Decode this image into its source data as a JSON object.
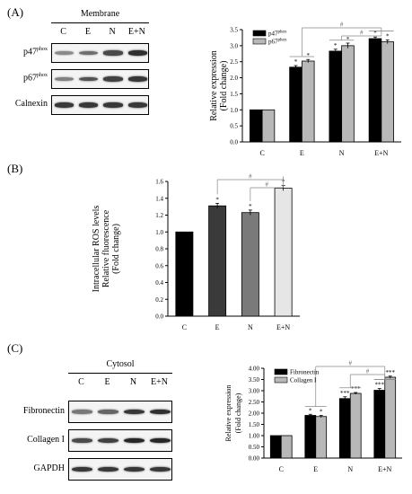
{
  "panels": {
    "a": "(A)",
    "b": "(B)",
    "c": "(C)"
  },
  "blot_a": {
    "header": "Membrane",
    "lanes": [
      "C",
      "E",
      "N",
      "E+N"
    ],
    "rows": [
      {
        "name": "p47",
        "sup": "phox",
        "intensity": [
          0.35,
          0.5,
          0.7,
          0.85
        ]
      },
      {
        "name": "p67",
        "sup": "phox",
        "intensity": [
          0.4,
          0.65,
          0.75,
          0.8
        ]
      },
      {
        "name": "Calnexin",
        "sup": "",
        "intensity": [
          0.8,
          0.8,
          0.8,
          0.8
        ]
      }
    ]
  },
  "blot_c": {
    "header": "Cytosol",
    "lanes": [
      "C",
      "E",
      "N",
      "E+N"
    ],
    "rows": [
      {
        "name": "Fibronectin",
        "sup": "",
        "intensity": [
          0.45,
          0.55,
          0.8,
          0.85
        ]
      },
      {
        "name": "Collagen I",
        "sup": "",
        "intensity": [
          0.7,
          0.75,
          0.9,
          0.9
        ]
      },
      {
        "name": "GAPDH",
        "sup": "",
        "intensity": [
          0.8,
          0.8,
          0.8,
          0.8
        ]
      }
    ]
  },
  "colors": {
    "black": "#000000",
    "grey": "#b8b8b8",
    "dark": "#3a3a3a",
    "mid": "#7a7a7a",
    "light": "#e6e6e6"
  },
  "chart_data": [
    {
      "id": "chart-a",
      "type": "bar",
      "categories": [
        "C",
        "E",
        "N",
        "E+N"
      ],
      "series": [
        {
          "name": "p47",
          "name_sup": "phox",
          "values": [
            1.0,
            2.33,
            2.83,
            3.22
          ],
          "errors": [
            0,
            0.05,
            0.06,
            0.05
          ],
          "sig": [
            "",
            "*",
            "*",
            "*"
          ]
        },
        {
          "name": "p67",
          "name_sup": "phox",
          "values": [
            1.0,
            2.52,
            3.0,
            3.12
          ],
          "errors": [
            0,
            0.05,
            0.08,
            0.06
          ],
          "sig": [
            "",
            "*",
            "*",
            "*"
          ]
        }
      ],
      "ylabel": [
        "Relative expression",
        "(Fold change)"
      ],
      "ylim": [
        0,
        3.5
      ],
      "yticks": [
        0.0,
        0.5,
        1.0,
        1.5,
        2.0,
        2.5,
        3.0,
        3.5
      ],
      "tick_format": 1,
      "brackets": [
        "#",
        "#"
      ],
      "legend": "top-left"
    },
    {
      "id": "chart-b",
      "type": "bar",
      "categories": [
        "C",
        "E",
        "N",
        "E+N"
      ],
      "series": [
        {
          "values": [
            1.0,
            1.31,
            1.23,
            1.52
          ],
          "errors": [
            0,
            0.03,
            0.03,
            0.03
          ],
          "sig": [
            "",
            "*",
            "*",
            "*"
          ]
        }
      ],
      "ylabel": [
        "Intracellular ROS levels",
        "Relative fluorescence",
        "(Fold change)"
      ],
      "ylim": [
        0,
        1.6
      ],
      "yticks": [
        0.0,
        0.2,
        0.4,
        0.6,
        0.8,
        1.0,
        1.2,
        1.4,
        1.6
      ],
      "tick_format": 1,
      "brackets": [
        "#",
        "#"
      ]
    },
    {
      "id": "chart-c",
      "type": "bar",
      "categories": [
        "C",
        "E",
        "N",
        "E+N"
      ],
      "series": [
        {
          "name": "Fibronectin",
          "values": [
            1.0,
            1.9,
            2.65,
            3.02
          ],
          "errors": [
            0,
            0.05,
            0.08,
            0.08
          ],
          "sig": [
            "",
            "*",
            "***",
            "***"
          ]
        },
        {
          "name": "Collagen I",
          "values": [
            1.0,
            1.85,
            2.88,
            3.6
          ],
          "errors": [
            0,
            0.05,
            0.04,
            0.05
          ],
          "sig": [
            "",
            "*",
            "***",
            "***"
          ]
        }
      ],
      "ylabel": [
        "Relative expression",
        "(Fold change)"
      ],
      "ylim": [
        0,
        4.0
      ],
      "yticks": [
        0.0,
        0.5,
        1.0,
        1.5,
        2.0,
        2.5,
        3.0,
        3.5,
        4.0
      ],
      "tick_format": 2,
      "brackets": [
        "#",
        "#"
      ],
      "legend": "top-left"
    }
  ]
}
